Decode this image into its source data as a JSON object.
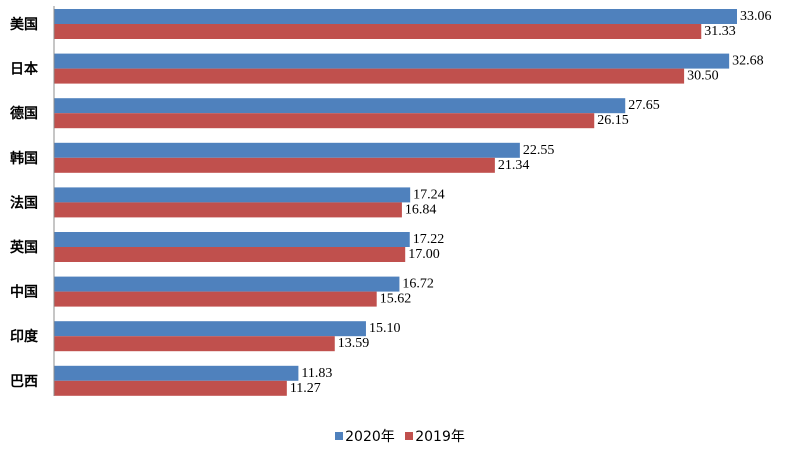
{
  "chart_data": {
    "type": "bar",
    "orientation": "horizontal",
    "categories": [
      "美国",
      "日本",
      "德国",
      "韩国",
      "法国",
      "英国",
      "中国",
      "印度",
      "巴西"
    ],
    "series": [
      {
        "name": "2020年",
        "color": "#4f81bd",
        "values": [
          33.06,
          32.68,
          27.65,
          22.55,
          17.24,
          17.22,
          16.72,
          15.1,
          11.83
        ]
      },
      {
        "name": "2019年",
        "color": "#c0504d",
        "values": [
          31.33,
          30.5,
          26.15,
          21.34,
          16.84,
          17.0,
          15.62,
          13.59,
          11.27
        ]
      }
    ],
    "value_labels": [
      [
        "33.06",
        "32.68",
        "27.65",
        "22.55",
        "17.24",
        "17.22",
        "16.72",
        "15.10",
        "11.83"
      ],
      [
        "31.33",
        "30.50",
        "26.15",
        "21.34",
        "16.84",
        "17.00",
        "15.62",
        "13.59",
        "11.27"
      ]
    ],
    "xlim": [
      0,
      36
    ],
    "grid": false,
    "legend_position": "bottom-center"
  }
}
